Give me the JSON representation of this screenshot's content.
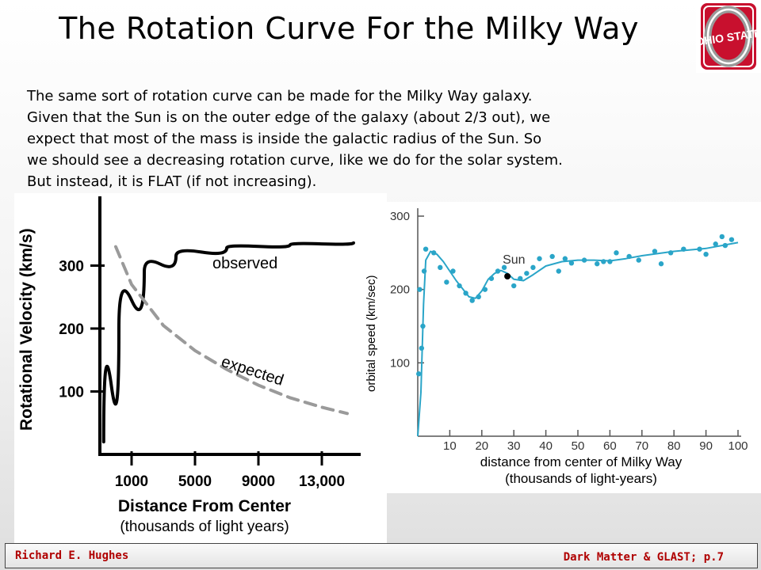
{
  "slide": {
    "title": "The Rotation Curve For the Milky Way",
    "logo_text": "OHIO STATE",
    "body_lines": [
      "The same sort of rotation curve can be made for the Milky Way galaxy.",
      "Given that the Sun is on the outer edge of the galaxy (about 2/3 out), we",
      "expect that most of the mass is inside the galactic radius of the Sun.  So",
      "we should see a decreasing rotation curve, like we do for the solar system.",
      "But instead, it is FLAT (if not increasing)."
    ],
    "footer_left": "Richard E. Hughes",
    "footer_right": "Dark Matter & GLAST; p.7",
    "colors": {
      "accent": "#b00000",
      "logo_red": "#c8102e",
      "data_point": "#2aa5c8",
      "curve": "#2aa5c8"
    }
  },
  "chart_data": [
    {
      "type": "line",
      "ylabel": "Rotational Velocity (km/s)",
      "xlabel": "Distance From Center",
      "xlabel_sub": "(thousands of light years)",
      "x_ticks": [
        "1000",
        "5000",
        "9000",
        "13,000"
      ],
      "y_ticks": [
        300,
        200,
        100
      ],
      "ylim": [
        0,
        400
      ],
      "series": [
        {
          "name": "observed",
          "style": "solid",
          "x": [
            0.06,
            0.3,
            0.7,
            1.2,
            2,
            3,
            4
          ],
          "y": [
            20,
            200,
            290,
            315,
            328,
            333,
            336
          ]
        },
        {
          "name": "expected",
          "style": "dashed",
          "x": [
            0.25,
            0.5,
            1,
            1.5,
            2,
            2.5,
            3,
            3.5,
            3.9
          ],
          "y": [
            330,
            270,
            205,
            165,
            135,
            110,
            90,
            75,
            65
          ]
        }
      ]
    },
    {
      "type": "scatter",
      "ylabel": "orbital speed (km/sec)",
      "xlabel": "distance from center of Milky Way",
      "xlabel_sub": "(thousands of light-years)",
      "xlim": [
        0,
        100
      ],
      "ylim": [
        0,
        300
      ],
      "x_ticks": [
        10,
        20,
        30,
        40,
        50,
        60,
        70,
        80,
        90,
        100
      ],
      "y_ticks": [
        100,
        200,
        300
      ],
      "annotation": {
        "label": "Sun",
        "x": 28,
        "y": 218
      },
      "points": [
        [
          0.3,
          85
        ],
        [
          0.6,
          200
        ],
        [
          1.2,
          120
        ],
        [
          1.6,
          150
        ],
        [
          2,
          225
        ],
        [
          2.5,
          255
        ],
        [
          5,
          250
        ],
        [
          7,
          230
        ],
        [
          9,
          210
        ],
        [
          11,
          225
        ],
        [
          13,
          205
        ],
        [
          15,
          195
        ],
        [
          17,
          185
        ],
        [
          19,
          190
        ],
        [
          21,
          200
        ],
        [
          23,
          215
        ],
        [
          25,
          225
        ],
        [
          27,
          230
        ],
        [
          30,
          205
        ],
        [
          32,
          215
        ],
        [
          34,
          222
        ],
        [
          36,
          230
        ],
        [
          38,
          242
        ],
        [
          42,
          245
        ],
        [
          44,
          225
        ],
        [
          46,
          242
        ],
        [
          48,
          236
        ],
        [
          52,
          240
        ],
        [
          56,
          235
        ],
        [
          58,
          238
        ],
        [
          60,
          238
        ],
        [
          62,
          250
        ],
        [
          66,
          245
        ],
        [
          69,
          240
        ],
        [
          74,
          252
        ],
        [
          76,
          235
        ],
        [
          79,
          250
        ],
        [
          83,
          255
        ],
        [
          88,
          255
        ],
        [
          90,
          248
        ],
        [
          93,
          262
        ],
        [
          95,
          272
        ],
        [
          96,
          260
        ],
        [
          98,
          268
        ]
      ],
      "curve": {
        "x": [
          0,
          1,
          1.8,
          2.5,
          4,
          6,
          8,
          12,
          16,
          18,
          20,
          22,
          24,
          26,
          28,
          30,
          33,
          36,
          40,
          45,
          50,
          55,
          60,
          65,
          70,
          80,
          90,
          100
        ],
        "y": [
          0,
          60,
          180,
          240,
          252,
          248,
          238,
          212,
          190,
          188,
          198,
          214,
          222,
          226,
          222,
          214,
          212,
          220,
          232,
          238,
          240,
          240,
          239,
          242,
          246,
          252,
          256,
          264
        ]
      }
    }
  ]
}
